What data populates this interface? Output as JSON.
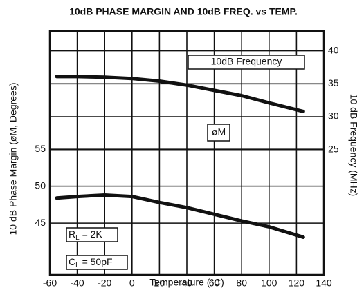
{
  "chart_data": {
    "type": "line",
    "title": "10dB PHASE MARGIN AND 10dB FREQ. vs TEMP.",
    "x_label": "Temperature (°C)",
    "y_label": "10 dB Phase Margin (øM, Degrees)",
    "y2_label": "10 dB Frequency (MHz)",
    "x": [
      -55,
      -40,
      -20,
      0,
      20,
      40,
      60,
      80,
      100,
      125
    ],
    "series": [
      {
        "name": "10dB Frequency",
        "axis": "y2",
        "color": "#111111",
        "values": [
          36.1,
          36.1,
          36.0,
          35.8,
          35.4,
          34.8,
          34.0,
          33.2,
          32.1,
          30.8
        ]
      },
      {
        "name": "øM",
        "axis": "y",
        "color": "#111111",
        "values": [
          48.4,
          48.6,
          48.8,
          48.6,
          47.8,
          47.1,
          46.2,
          45.3,
          44.5,
          43.1
        ]
      }
    ],
    "xlim": [
      -60,
      140
    ],
    "xticks": [
      -60,
      -40,
      -20,
      0,
      20,
      40,
      60,
      80,
      100,
      120,
      140
    ],
    "ylim": [
      38,
      71
    ],
    "yticks": [
      45,
      50,
      55
    ],
    "y2lim": [
      6,
      43
    ],
    "y2ticks": [
      25,
      30,
      35,
      40
    ],
    "grid": true,
    "annotations": [
      {
        "main": "R",
        "sub": "L",
        "rest": " = 2K"
      },
      {
        "main": "C",
        "sub": "L",
        "rest": " = 50pF"
      }
    ]
  }
}
